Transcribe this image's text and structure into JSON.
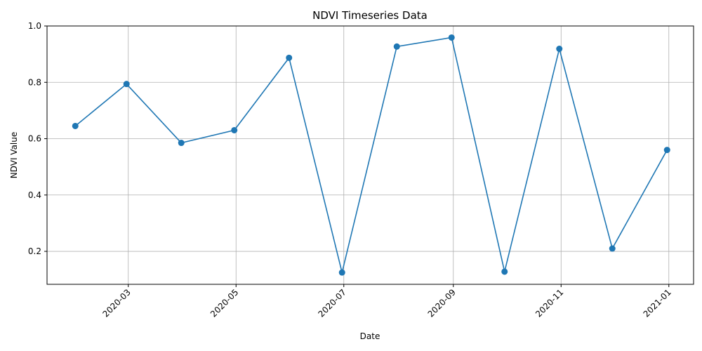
{
  "chart_data": {
    "type": "line",
    "title": "NDVI Timeseries Data",
    "xlabel": "Date",
    "ylabel": "NDVI Value",
    "xlim": [
      "2020-01-15",
      "2021-01-15"
    ],
    "ylim": [
      0.083,
      1.0
    ],
    "x_ticks": [
      "2020-03",
      "2020-05",
      "2020-07",
      "2020-09",
      "2020-11",
      "2021-01"
    ],
    "y_ticks": [
      0.2,
      0.4,
      0.6,
      0.8,
      1.0
    ],
    "grid": true,
    "color": "#1f77b4",
    "series": [
      {
        "x": [
          "2020-01-31",
          "2020-02-29",
          "2020-03-31",
          "2020-04-30",
          "2020-05-31",
          "2020-06-30",
          "2020-07-31",
          "2020-08-31",
          "2020-09-30",
          "2020-10-31",
          "2020-11-30",
          "2020-12-31"
        ],
        "values": [
          0.645,
          0.794,
          0.585,
          0.63,
          0.887,
          0.125,
          0.927,
          0.959,
          0.128,
          0.919,
          0.21,
          0.56
        ]
      }
    ]
  }
}
